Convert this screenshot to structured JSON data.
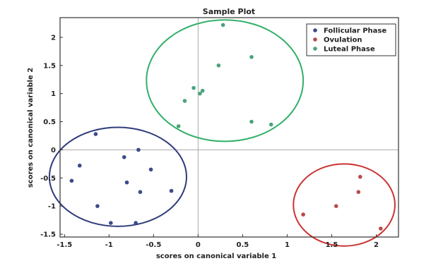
{
  "chart_data": {
    "type": "scatter",
    "title": "Sample Plot",
    "xlabel": "scores on canonical variable 1",
    "ylabel": "scores on canonical variable 2",
    "xlim": [
      -1.55,
      2.25
    ],
    "ylim": [
      -1.55,
      2.35
    ],
    "xticks": [
      -1.5,
      -1,
      -0.5,
      0,
      0.5,
      1,
      1.5,
      2
    ],
    "xtick_labels": [
      "-1.5",
      "-1",
      "-0.5",
      "0",
      "0.5",
      "1",
      "1.5",
      "2"
    ],
    "yticks": [
      -1.5,
      -1,
      -0.5,
      0,
      0.5,
      1,
      1.5,
      2
    ],
    "ytick_labels": [
      "-1.5",
      "-1",
      "-0.5",
      "0",
      "0.5",
      "1",
      "1.5",
      "2"
    ],
    "legend_position": "top-right",
    "grid": false,
    "series": [
      {
        "name": "Follicular Phase",
        "color": "#3b4a8a",
        "points": [
          [
            -1.15,
            0.28
          ],
          [
            -0.67,
            0.0
          ],
          [
            -1.33,
            -0.28
          ],
          [
            -0.83,
            -0.13
          ],
          [
            -0.53,
            -0.35
          ],
          [
            -1.42,
            -0.55
          ],
          [
            -0.8,
            -0.58
          ],
          [
            -0.3,
            -0.73
          ],
          [
            -0.65,
            -0.75
          ],
          [
            -1.13,
            -1.0
          ],
          [
            -0.98,
            -1.3
          ],
          [
            -0.7,
            -1.3
          ]
        ]
      },
      {
        "name": "Ovulation",
        "color": "#b94a4a",
        "points": [
          [
            1.82,
            -0.48
          ],
          [
            1.8,
            -0.75
          ],
          [
            1.55,
            -1.0
          ],
          [
            1.18,
            -1.15
          ],
          [
            2.05,
            -1.4
          ]
        ]
      },
      {
        "name": "Luteal Phase",
        "color": "#4aa37a",
        "points": [
          [
            0.28,
            2.22
          ],
          [
            0.6,
            1.65
          ],
          [
            0.23,
            1.5
          ],
          [
            -0.05,
            1.1
          ],
          [
            0.02,
            1.0
          ],
          [
            0.05,
            1.05
          ],
          [
            -0.15,
            0.87
          ],
          [
            0.6,
            0.5
          ],
          [
            0.82,
            0.45
          ],
          [
            -0.22,
            0.42
          ]
        ]
      }
    ],
    "ellipses": [
      {
        "color": "#2e3c7a",
        "cx": -0.9,
        "cy": -0.48,
        "rx": 0.77,
        "ry": 0.88
      },
      {
        "color": "#cc3333",
        "cx": 1.64,
        "cy": -0.98,
        "rx": 0.57,
        "ry": 0.73
      },
      {
        "color": "#33b06a",
        "cx": 0.3,
        "cy": 1.23,
        "rx": 0.88,
        "ry": 1.08
      }
    ]
  }
}
